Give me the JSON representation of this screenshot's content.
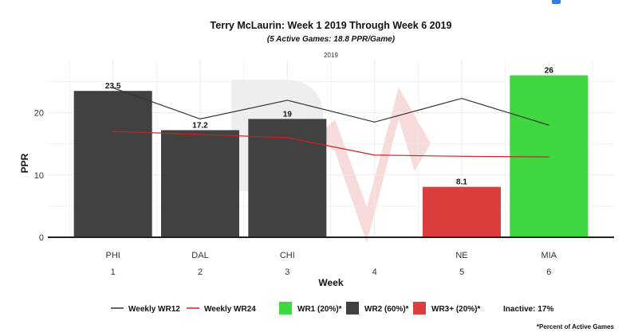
{
  "chart_data": {
    "type": "bar",
    "title": "Terry McLaurin: Week 1 2019 Through Week 6 2019",
    "subtitle": "(5 Active Games: 18.8 PPR/Game)",
    "facet_label": "2019",
    "xlabel": "Week",
    "ylabel": "PPR",
    "ylim": [
      0,
      28
    ],
    "yticks": [
      0,
      10,
      20
    ],
    "weeks": [
      1,
      2,
      3,
      4,
      5,
      6
    ],
    "opponents": [
      "PHI",
      "DAL",
      "CHI",
      "",
      "NE",
      "MIA"
    ],
    "values": [
      23.5,
      17.2,
      19,
      null,
      8.1,
      26
    ],
    "value_labels": [
      "23.5",
      "17.2",
      "19",
      "",
      "8.1",
      "26"
    ],
    "tiers": [
      "WR2",
      "WR2",
      "WR2",
      null,
      "WR3+",
      "WR1"
    ],
    "series": [
      {
        "name": "Weekly WR12",
        "values": [
          24,
          19,
          22,
          18.5,
          22.3,
          18
        ]
      },
      {
        "name": "Weekly WR24",
        "values": [
          17,
          16.5,
          16,
          13.2,
          13,
          12.9
        ]
      }
    ],
    "legend": {
      "line_items": [
        {
          "label": "Weekly WR12",
          "color": "#333333"
        },
        {
          "label": "Weekly WR24",
          "color": "#cc2222"
        }
      ],
      "box_items": [
        {
          "label": "WR1 (20%)*",
          "color": "#3fd63f"
        },
        {
          "label": "WR2 (60%)*",
          "color": "#414141"
        },
        {
          "label": "WR3+ (20%)*",
          "color": "#dc3d3d"
        }
      ],
      "inactive": "Inactive: 17%",
      "footnote": "*Percent of Active Games"
    },
    "colors": {
      "WR1": "#3fd63f",
      "WR2": "#414141",
      "WR3+": "#dc3d3d",
      "wr12_line": "#333333",
      "wr24_line": "#cc2222",
      "grid": "#ebebeb",
      "axis": "#222222"
    }
  }
}
